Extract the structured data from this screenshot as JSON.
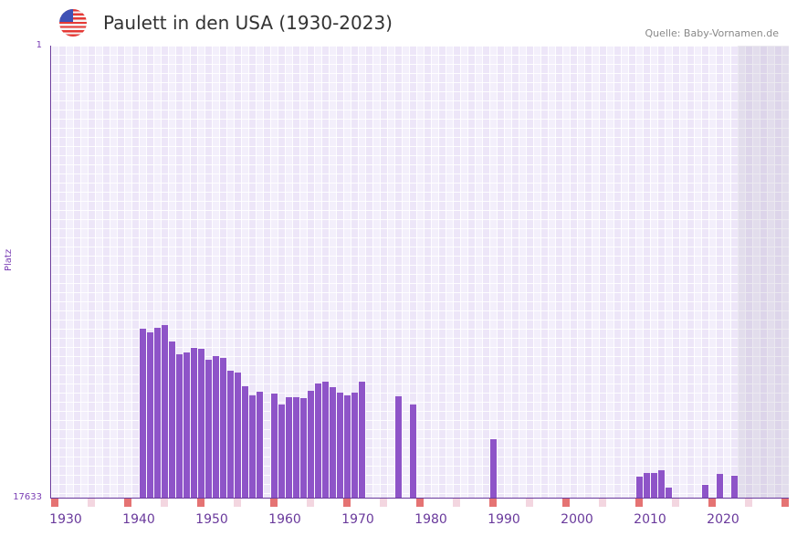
{
  "header": {
    "title": "Paulett in den USA (1930-2023)",
    "source": "Quelle: Baby-Vornamen.de",
    "flag_icon": "us-flag-icon"
  },
  "chart_data": {
    "type": "bar",
    "title": "Paulett in den USA (1930-2023)",
    "xlabel": "",
    "ylabel": "Platz",
    "y_inverted": true,
    "ylim": [
      1,
      17633
    ],
    "y_tick_labels": [
      "1",
      "17633"
    ],
    "x_range": [
      1928,
      2028
    ],
    "x_tick_labels": [
      "1930",
      "1940",
      "1950",
      "1960",
      "1970",
      "1980",
      "1990",
      "2000",
      "2010",
      "2020"
    ],
    "shaded_from_year": 2022,
    "colors": {
      "bar": "#8e54c8",
      "marker_strong": "#e57373",
      "marker_light": "#f3d6e0"
    },
    "years": [
      1940,
      1941,
      1942,
      1943,
      1944,
      1945,
      1946,
      1947,
      1948,
      1949,
      1950,
      1951,
      1952,
      1953,
      1954,
      1955,
      1956,
      1958,
      1959,
      1960,
      1961,
      1962,
      1963,
      1964,
      1965,
      1966,
      1967,
      1968,
      1969,
      1970,
      1975,
      1977,
      1988,
      2008,
      2009,
      2010,
      2011,
      2012,
      2017,
      2019,
      2021
    ],
    "ranks": [
      11043,
      11185,
      11007,
      10900,
      11542,
      12041,
      11970,
      11791,
      11827,
      12254,
      12112,
      12183,
      12682,
      12753,
      13287,
      13644,
      13501,
      13572,
      13999,
      13714,
      13714,
      13750,
      13465,
      13180,
      13109,
      13323,
      13536,
      13644,
      13536,
      13109,
      13679,
      13999,
      15353,
      16814,
      16671,
      16671,
      16565,
      17242,
      17135,
      16707,
      16778
    ]
  }
}
